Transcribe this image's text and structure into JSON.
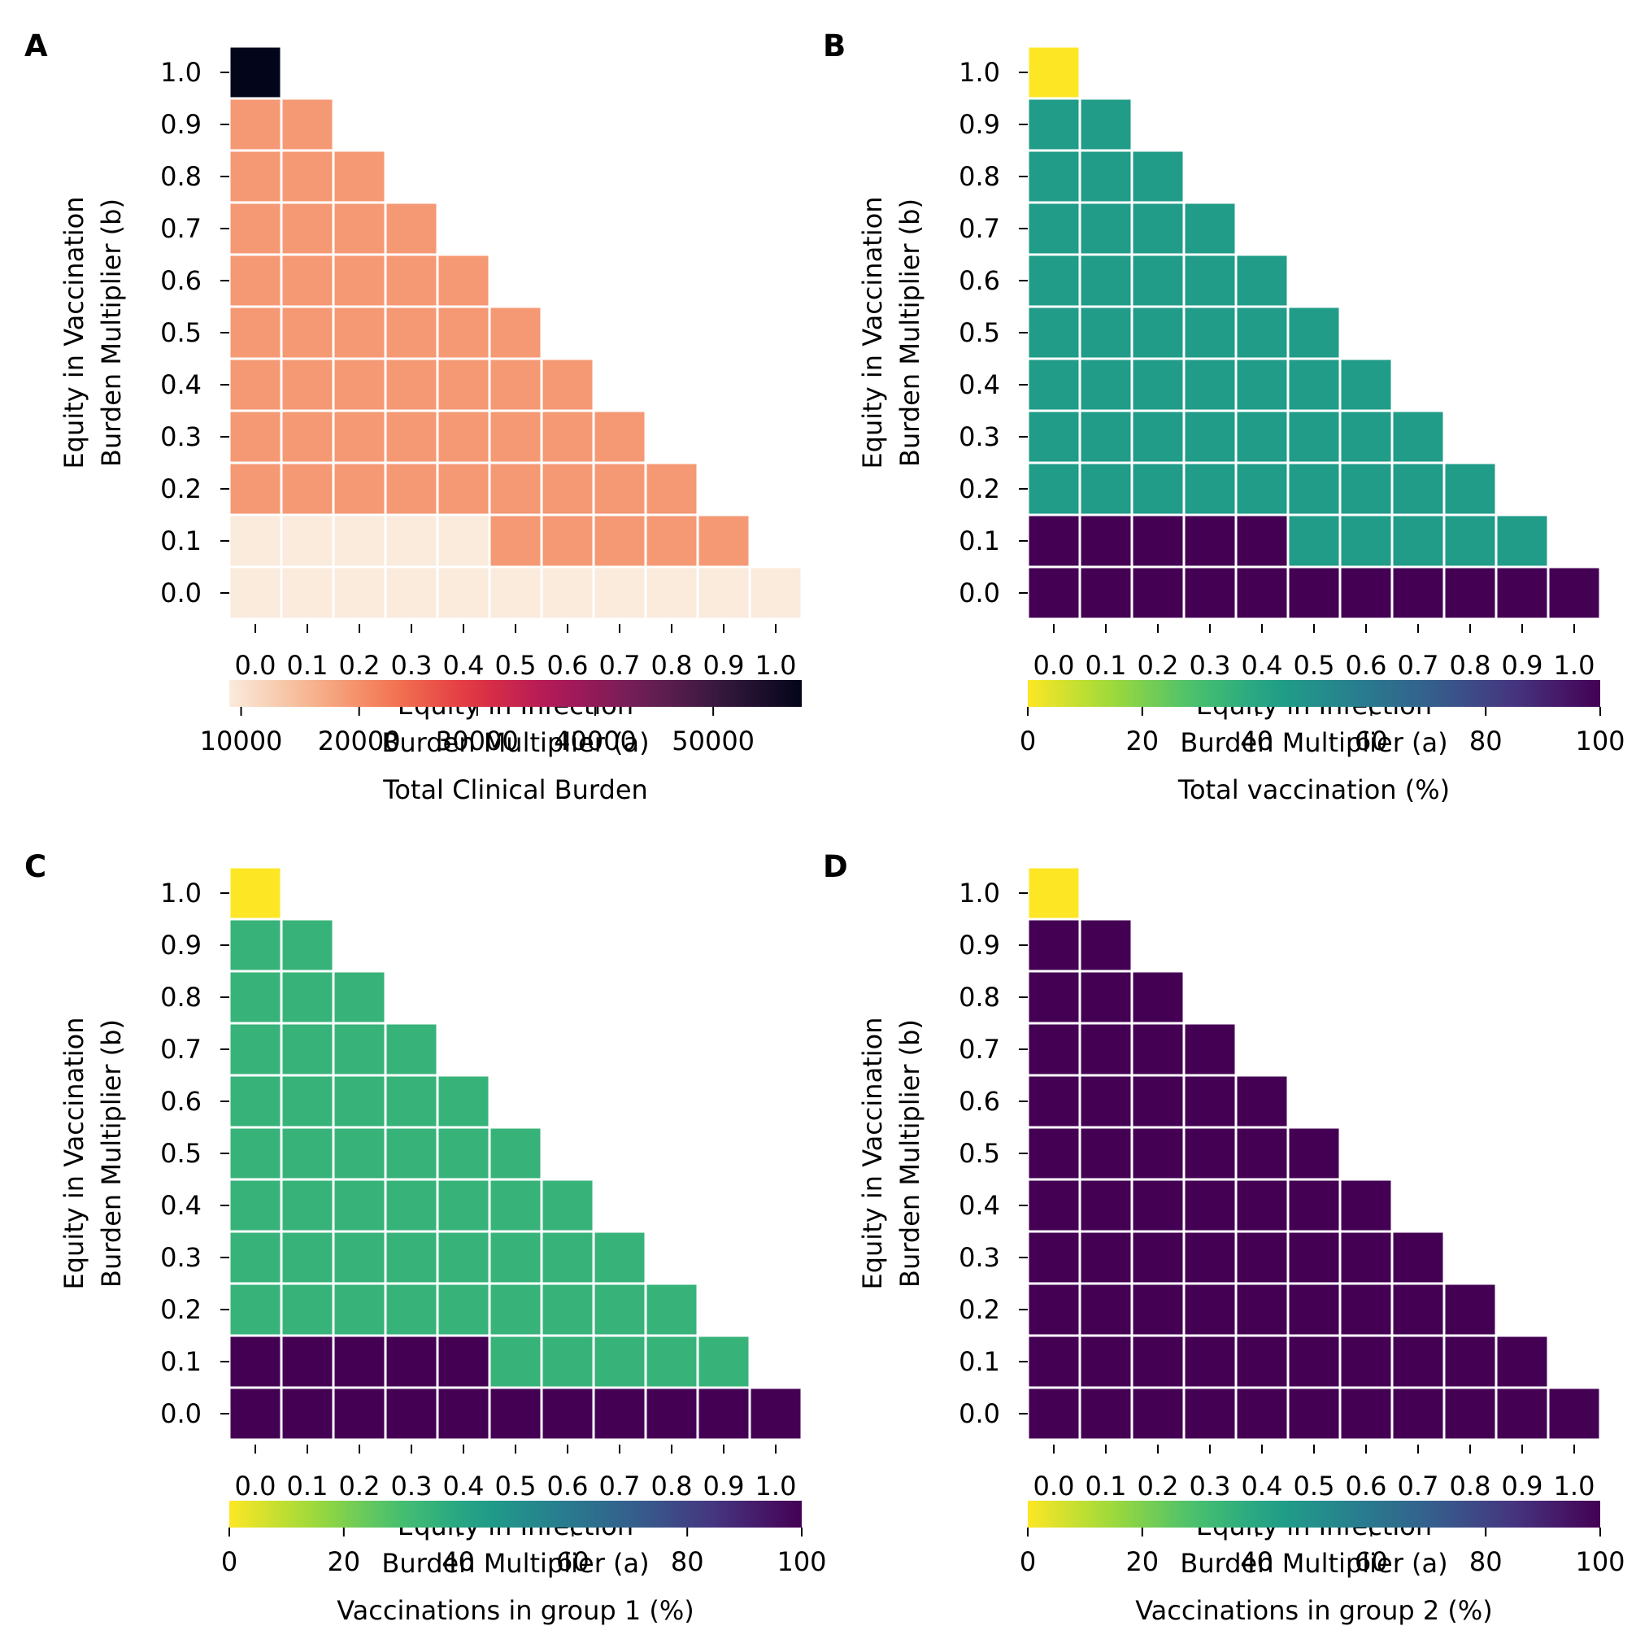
{
  "ticks": [
    "0.0",
    "0.1",
    "0.2",
    "0.3",
    "0.4",
    "0.5",
    "0.6",
    "0.7",
    "0.8",
    "0.9",
    "1.0"
  ],
  "colormaps": {
    "rocket_r": [
      "#faebdd",
      "#f6b48f",
      "#f37651",
      "#e13342",
      "#ad1759",
      "#701f57",
      "#35193e",
      "#03051a"
    ],
    "viridis_r": [
      "#fde725",
      "#a0da39",
      "#4ac16d",
      "#1fa187",
      "#277f8e",
      "#365c8d",
      "#46327e",
      "#440154"
    ]
  },
  "chart_data": [
    {
      "type": "heatmap",
      "panel_label": "A",
      "xlabel": [
        "Equity in Infection",
        "Burden Multiplier (a)"
      ],
      "ylabel": [
        "Equity in Vaccination",
        "Burden Multiplier (b)"
      ],
      "x": [
        "0.0",
        "0.1",
        "0.2",
        "0.3",
        "0.4",
        "0.5",
        "0.6",
        "0.7",
        "0.8",
        "0.9",
        "1.0"
      ],
      "y": [
        "0.0",
        "0.1",
        "0.2",
        "0.3",
        "0.4",
        "0.5",
        "0.6",
        "0.7",
        "0.8",
        "0.9",
        "1.0"
      ],
      "values": [
        [
          9000,
          9000,
          9000,
          9000,
          9000,
          9000,
          9000,
          9000,
          9000,
          9000,
          9000
        ],
        [
          9000,
          9000,
          9000,
          9000,
          9000,
          19000,
          19000,
          19000,
          19000,
          19000,
          null
        ],
        [
          19000,
          19000,
          19000,
          19000,
          19000,
          19000,
          19000,
          19000,
          19000,
          null,
          null
        ],
        [
          19000,
          19000,
          19000,
          19000,
          19000,
          19000,
          19000,
          19000,
          null,
          null,
          null
        ],
        [
          19000,
          19000,
          19000,
          19000,
          19000,
          19000,
          19000,
          null,
          null,
          null,
          null
        ],
        [
          19000,
          19000,
          19000,
          19000,
          19000,
          19000,
          null,
          null,
          null,
          null,
          null
        ],
        [
          19000,
          19000,
          19000,
          19000,
          19000,
          null,
          null,
          null,
          null,
          null,
          null
        ],
        [
          19000,
          19000,
          19000,
          19000,
          null,
          null,
          null,
          null,
          null,
          null,
          null
        ],
        [
          19000,
          19000,
          19000,
          null,
          null,
          null,
          null,
          null,
          null,
          null,
          null
        ],
        [
          19000,
          19000,
          null,
          null,
          null,
          null,
          null,
          null,
          null,
          null,
          null
        ],
        [
          57500,
          null,
          null,
          null,
          null,
          null,
          null,
          null,
          null,
          null,
          null
        ]
      ],
      "colormap": "rocket_r",
      "colorbar": {
        "label": "Total Clinical Burden",
        "min": 9000,
        "max": 57500,
        "ticks": [
          10000,
          20000,
          30000,
          40000,
          50000
        ]
      }
    },
    {
      "type": "heatmap",
      "panel_label": "B",
      "xlabel": [
        "Equity in Infection",
        "Burden Multiplier (a)"
      ],
      "ylabel": [
        "Equity in Vaccination",
        "Burden Multiplier (b)"
      ],
      "x": [
        "0.0",
        "0.1",
        "0.2",
        "0.3",
        "0.4",
        "0.5",
        "0.6",
        "0.7",
        "0.8",
        "0.9",
        "1.0"
      ],
      "y": [
        "0.0",
        "0.1",
        "0.2",
        "0.3",
        "0.4",
        "0.5",
        "0.6",
        "0.7",
        "0.8",
        "0.9",
        "1.0"
      ],
      "values": [
        [
          100,
          100,
          100,
          100,
          100,
          100,
          100,
          100,
          100,
          100,
          100
        ],
        [
          100,
          100,
          100,
          100,
          100,
          45,
          45,
          45,
          45,
          45,
          null
        ],
        [
          45,
          45,
          45,
          45,
          45,
          45,
          45,
          45,
          45,
          null,
          null
        ],
        [
          45,
          45,
          45,
          45,
          45,
          45,
          45,
          45,
          null,
          null,
          null
        ],
        [
          45,
          45,
          45,
          45,
          45,
          45,
          45,
          null,
          null,
          null,
          null
        ],
        [
          45,
          45,
          45,
          45,
          45,
          45,
          null,
          null,
          null,
          null,
          null
        ],
        [
          45,
          45,
          45,
          45,
          45,
          null,
          null,
          null,
          null,
          null,
          null
        ],
        [
          45,
          45,
          45,
          45,
          null,
          null,
          null,
          null,
          null,
          null,
          null
        ],
        [
          45,
          45,
          45,
          null,
          null,
          null,
          null,
          null,
          null,
          null,
          null
        ],
        [
          45,
          45,
          null,
          null,
          null,
          null,
          null,
          null,
          null,
          null,
          null
        ],
        [
          0,
          null,
          null,
          null,
          null,
          null,
          null,
          null,
          null,
          null,
          null
        ]
      ],
      "colormap": "viridis_r",
      "colorbar": {
        "label": "Total vaccination (%)",
        "min": 0,
        "max": 100,
        "ticks": [
          0,
          20,
          40,
          60,
          80,
          100
        ]
      }
    },
    {
      "type": "heatmap",
      "panel_label": "C",
      "xlabel": [
        "Equity in Infection",
        "Burden Multiplier (a)"
      ],
      "ylabel": [
        "Equity in Vaccination",
        "Burden Multiplier (b)"
      ],
      "x": [
        "0.0",
        "0.1",
        "0.2",
        "0.3",
        "0.4",
        "0.5",
        "0.6",
        "0.7",
        "0.8",
        "0.9",
        "1.0"
      ],
      "y": [
        "0.0",
        "0.1",
        "0.2",
        "0.3",
        "0.4",
        "0.5",
        "0.6",
        "0.7",
        "0.8",
        "0.9",
        "1.0"
      ],
      "values": [
        [
          100,
          100,
          100,
          100,
          100,
          100,
          100,
          100,
          100,
          100,
          100
        ],
        [
          100,
          100,
          100,
          100,
          100,
          35,
          35,
          35,
          35,
          35,
          null
        ],
        [
          35,
          35,
          35,
          35,
          35,
          35,
          35,
          35,
          35,
          null,
          null
        ],
        [
          35,
          35,
          35,
          35,
          35,
          35,
          35,
          35,
          null,
          null,
          null
        ],
        [
          35,
          35,
          35,
          35,
          35,
          35,
          35,
          null,
          null,
          null,
          null
        ],
        [
          35,
          35,
          35,
          35,
          35,
          35,
          null,
          null,
          null,
          null,
          null
        ],
        [
          35,
          35,
          35,
          35,
          35,
          null,
          null,
          null,
          null,
          null,
          null
        ],
        [
          35,
          35,
          35,
          35,
          null,
          null,
          null,
          null,
          null,
          null,
          null
        ],
        [
          35,
          35,
          35,
          null,
          null,
          null,
          null,
          null,
          null,
          null,
          null
        ],
        [
          35,
          35,
          null,
          null,
          null,
          null,
          null,
          null,
          null,
          null,
          null
        ],
        [
          0,
          null,
          null,
          null,
          null,
          null,
          null,
          null,
          null,
          null,
          null
        ]
      ],
      "colormap": "viridis_r",
      "colorbar": {
        "label": "Vaccinations in group 1 (%)",
        "min": 0,
        "max": 100,
        "ticks": [
          0,
          20,
          40,
          60,
          80,
          100
        ]
      }
    },
    {
      "type": "heatmap",
      "panel_label": "D",
      "xlabel": [
        "Equity in Infection",
        "Burden Multiplier (a)"
      ],
      "ylabel": [
        "Equity in Vaccination",
        "Burden Multiplier (b)"
      ],
      "x": [
        "0.0",
        "0.1",
        "0.2",
        "0.3",
        "0.4",
        "0.5",
        "0.6",
        "0.7",
        "0.8",
        "0.9",
        "1.0"
      ],
      "y": [
        "0.0",
        "0.1",
        "0.2",
        "0.3",
        "0.4",
        "0.5",
        "0.6",
        "0.7",
        "0.8",
        "0.9",
        "1.0"
      ],
      "values": [
        [
          100,
          100,
          100,
          100,
          100,
          100,
          100,
          100,
          100,
          100,
          100
        ],
        [
          100,
          100,
          100,
          100,
          100,
          100,
          100,
          100,
          100,
          100,
          null
        ],
        [
          100,
          100,
          100,
          100,
          100,
          100,
          100,
          100,
          100,
          null,
          null
        ],
        [
          100,
          100,
          100,
          100,
          100,
          100,
          100,
          100,
          null,
          null,
          null
        ],
        [
          100,
          100,
          100,
          100,
          100,
          100,
          100,
          null,
          null,
          null,
          null
        ],
        [
          100,
          100,
          100,
          100,
          100,
          100,
          null,
          null,
          null,
          null,
          null
        ],
        [
          100,
          100,
          100,
          100,
          100,
          null,
          null,
          null,
          null,
          null,
          null
        ],
        [
          100,
          100,
          100,
          100,
          null,
          null,
          null,
          null,
          null,
          null,
          null
        ],
        [
          100,
          100,
          100,
          null,
          null,
          null,
          null,
          null,
          null,
          null,
          null
        ],
        [
          100,
          100,
          null,
          null,
          null,
          null,
          null,
          null,
          null,
          null,
          null
        ],
        [
          0,
          null,
          null,
          null,
          null,
          null,
          null,
          null,
          null,
          null,
          null
        ]
      ],
      "colormap": "viridis_r",
      "colorbar": {
        "label": "Vaccinations in group 2 (%)",
        "min": 0,
        "max": 100,
        "ticks": [
          0,
          20,
          40,
          60,
          80,
          100
        ]
      }
    }
  ]
}
